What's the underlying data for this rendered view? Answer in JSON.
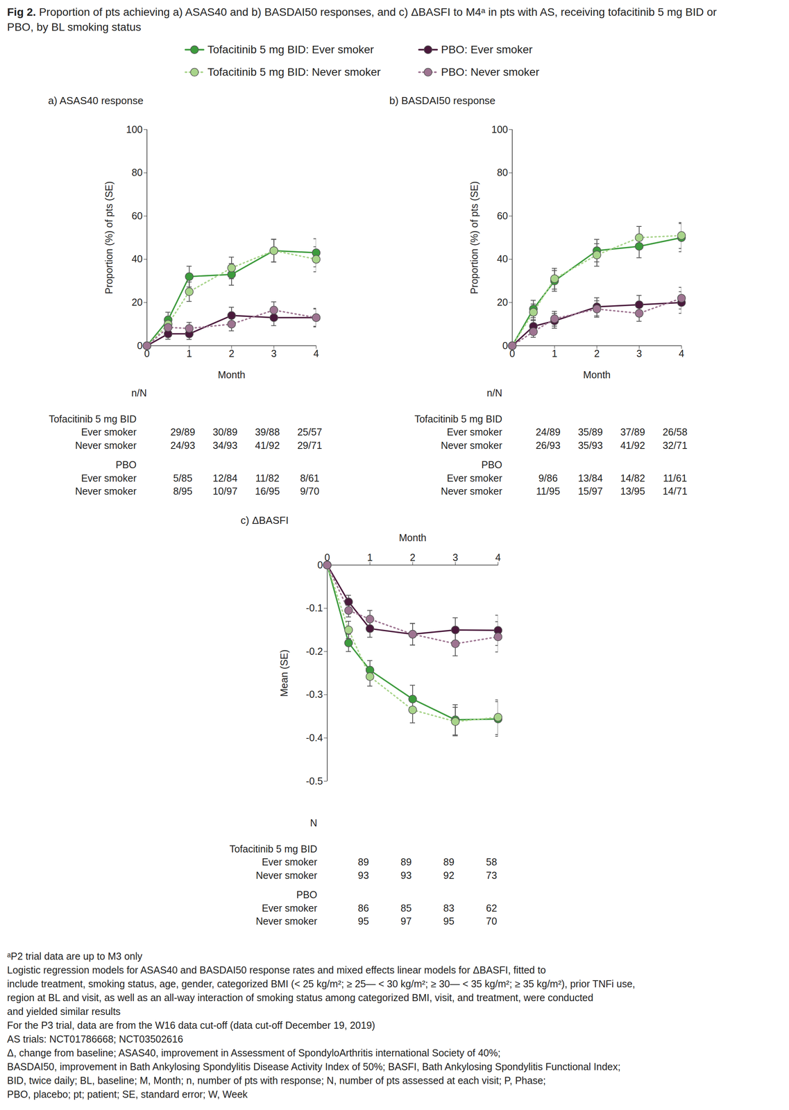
{
  "figure_label": "Fig 2.",
  "title": "Proportion of pts achieving a) ASAS40 and b) BASDAI50 responses, and c) ΔBASFI to M4ᵃ in pts with AS, receiving tofacitinib 5 mg BID or PBO, by BL smoking status",
  "chart_data": [
    {
      "type": "line",
      "title": "a) ASAS40 response",
      "x_label": "Month",
      "y_label": "Proportion (%) of pts (SE)",
      "x": [
        0,
        0.5,
        1,
        2,
        3,
        4
      ],
      "xlim": [
        0,
        4
      ],
      "xticks": [
        0,
        1,
        2,
        3,
        4
      ],
      "ylim": [
        0,
        100
      ],
      "yticks": [
        0,
        20,
        40,
        60,
        80,
        100
      ],
      "grid": false,
      "series": [
        {
          "name": "Tofacitinib 5 mg BID: Ever smoker",
          "color": "#3d9b3d",
          "line_style": "solid",
          "marker": "circle",
          "values": [
            0,
            12,
            32,
            33,
            44,
            43
          ],
          "errors": [
            null,
            3.5,
            4.8,
            5,
            5.3,
            6.5
          ]
        },
        {
          "name": "Tofacitinib 5 mg BID: Never smoker",
          "color": "#a8d48a",
          "line_style": "dotted",
          "marker": "circle",
          "values": [
            0,
            10,
            25,
            36,
            44,
            40
          ],
          "errors": [
            null,
            3.3,
            4.5,
            5,
            5.2,
            5.8
          ]
        },
        {
          "name": "PBO: Ever smoker",
          "color": "#4a1a3c",
          "line_style": "solid",
          "marker": "circle",
          "values": [
            0,
            5.5,
            5.5,
            14,
            13,
            13
          ],
          "errors": [
            null,
            2.5,
            2.6,
            3.8,
            3.7,
            4.3
          ]
        },
        {
          "name": "PBO: Never smoker",
          "color": "#9e7491",
          "line_style": "dotted",
          "marker": "circle",
          "values": [
            0,
            8.5,
            8,
            10,
            16.5,
            13
          ],
          "errors": [
            null,
            3,
            2.8,
            3.1,
            3.8,
            4
          ]
        }
      ],
      "table": {
        "header": "n/N",
        "x": [
          1,
          2,
          3,
          4
        ],
        "groups": [
          {
            "name": "Tofacitinib 5 mg BID",
            "rows": [
              {
                "label": "Ever smoker",
                "values": [
                  "29/89",
                  "30/89",
                  "39/88",
                  "25/57"
                ]
              },
              {
                "label": "Never smoker",
                "values": [
                  "24/93",
                  "34/93",
                  "41/92",
                  "29/71"
                ]
              }
            ]
          },
          {
            "name": "PBO",
            "rows": [
              {
                "label": "Ever smoker",
                "values": [
                  "5/85",
                  "12/84",
                  "11/82",
                  "8/61"
                ]
              },
              {
                "label": "Never smoker",
                "values": [
                  "8/95",
                  "10/97",
                  "16/95",
                  "9/70"
                ]
              }
            ]
          }
        ]
      }
    },
    {
      "type": "line",
      "title": "b) BASDAI50 response",
      "x_label": "Month",
      "y_label": "Proportion (%) of pts (SE)",
      "x": [
        0,
        0.5,
        1,
        2,
        3,
        4
      ],
      "xlim": [
        0,
        4
      ],
      "xticks": [
        0,
        1,
        2,
        3,
        4
      ],
      "ylim": [
        0,
        100
      ],
      "yticks": [
        0,
        20,
        40,
        60,
        80,
        100
      ],
      "grid": false,
      "series": [
        {
          "name": "Tofacitinib 5 mg BID: Ever smoker",
          "color": "#3d9b3d",
          "line_style": "solid",
          "marker": "circle",
          "values": [
            0,
            17,
            30,
            44,
            46,
            50
          ],
          "errors": [
            null,
            4,
            4.8,
            5.2,
            5.3,
            6.5
          ]
        },
        {
          "name": "Tofacitinib 5 mg BID: Never smoker",
          "color": "#a8d48a",
          "line_style": "dotted",
          "marker": "circle",
          "values": [
            0,
            15.5,
            31,
            42,
            50,
            51
          ],
          "errors": [
            null,
            3.8,
            4.8,
            5.2,
            5.2,
            6
          ]
        },
        {
          "name": "PBO: Ever smoker",
          "color": "#4a1a3c",
          "line_style": "solid",
          "marker": "circle",
          "values": [
            0,
            9,
            11.5,
            18,
            19,
            20
          ],
          "errors": [
            null,
            3,
            3.4,
            4.2,
            4.3,
            5
          ]
        },
        {
          "name": "PBO: Never smoker",
          "color": "#9e7491",
          "line_style": "dotted",
          "marker": "circle",
          "values": [
            0,
            6.5,
            12.5,
            17,
            15,
            22
          ],
          "errors": [
            null,
            2.6,
            3.4,
            3.8,
            3.7,
            5
          ]
        }
      ],
      "table": {
        "header": "n/N",
        "x": [
          1,
          2,
          3,
          4
        ],
        "groups": [
          {
            "name": "Tofacitinib 5 mg BID",
            "rows": [
              {
                "label": "Ever smoker",
                "values": [
                  "24/89",
                  "35/89",
                  "37/89",
                  "26/58"
                ]
              },
              {
                "label": "Never smoker",
                "values": [
                  "26/93",
                  "35/93",
                  "41/92",
                  "32/71"
                ]
              }
            ]
          },
          {
            "name": "PBO",
            "rows": [
              {
                "label": "Ever smoker",
                "values": [
                  "9/86",
                  "13/84",
                  "14/82",
                  "11/61"
                ]
              },
              {
                "label": "Never smoker",
                "values": [
                  "11/95",
                  "15/97",
                  "13/95",
                  "14/71"
                ]
              }
            ]
          }
        ]
      }
    },
    {
      "type": "line",
      "title": "c) ΔBASFI",
      "x_label": "Month",
      "y_label": "Mean (SE)",
      "x": [
        0,
        0.5,
        1,
        2,
        3,
        4
      ],
      "xlim": [
        0,
        4
      ],
      "xticks": [
        0,
        1,
        2,
        3,
        4
      ],
      "ylim": [
        -0.5,
        0
      ],
      "yticks": [
        0,
        -0.1,
        -0.2,
        -0.3,
        -0.4,
        -0.5
      ],
      "grid": false,
      "series": [
        {
          "name": "Tofacitinib 5 mg BID: Ever smoker",
          "color": "#3d9b3d",
          "line_style": "solid",
          "marker": "circle",
          "values": [
            0,
            -0.18,
            -0.243,
            -0.31,
            -0.358,
            -0.356
          ],
          "errors": [
            null,
            0.02,
            0.022,
            0.032,
            0.035,
            0.04
          ]
        },
        {
          "name": "Tofacitinib 5 mg BID: Never smoker",
          "color": "#a8d48a",
          "line_style": "dotted",
          "marker": "circle",
          "values": [
            0,
            -0.15,
            -0.258,
            -0.335,
            -0.362,
            -0.352
          ],
          "errors": [
            null,
            0.02,
            0.022,
            0.03,
            0.033,
            0.04
          ]
        },
        {
          "name": "PBO: Ever smoker",
          "color": "#4a1a3c",
          "line_style": "solid",
          "marker": "circle",
          "values": [
            0,
            -0.085,
            -0.147,
            -0.16,
            -0.15,
            -0.151
          ],
          "errors": [
            null,
            0.015,
            0.02,
            0.025,
            0.028,
            0.035
          ]
        },
        {
          "name": "PBO: Never smoker",
          "color": "#9e7491",
          "line_style": "dotted",
          "marker": "circle",
          "values": [
            0,
            -0.105,
            -0.125,
            -0.16,
            -0.182,
            -0.166
          ],
          "errors": [
            null,
            0.015,
            0.02,
            0.025,
            0.028,
            0.035
          ]
        }
      ],
      "table": {
        "header": "N",
        "x": [
          1,
          2,
          3,
          4
        ],
        "groups": [
          {
            "name": "Tofacitinib 5 mg BID",
            "rows": [
              {
                "label": "Ever smoker",
                "values": [
                  89,
                  89,
                  89,
                  58
                ]
              },
              {
                "label": "Never smoker",
                "values": [
                  93,
                  93,
                  92,
                  73
                ]
              }
            ]
          },
          {
            "name": "PBO",
            "rows": [
              {
                "label": "Ever smoker",
                "values": [
                  86,
                  85,
                  83,
                  62
                ]
              },
              {
                "label": "Never smoker",
                "values": [
                  95,
                  97,
                  95,
                  70
                ]
              }
            ]
          }
        ]
      }
    }
  ],
  "footnotes": [
    "ᵃP2 trial data are up to M3 only",
    "Logistic regression models for ASAS40 and BASDAI50 response rates and mixed effects linear models for ΔBASFI, fitted to",
    "include treatment, smoking status, age, gender, categorized BMI (< 25 kg/m²; ≥ 25— < 30 kg/m²; ≥ 30— < 35 kg/m²; ≥ 35 kg/m²), prior TNFi use,",
    "region at BL and visit, as well as an all-way interaction of smoking status among categorized BMI, visit, and treatment, were conducted",
    "and yielded similar results",
    "For the P3 trial, data are from the W16 data cut-off (data cut-off December 19, 2019)",
    "AS trials: NCT01786668; NCT03502616",
    "Δ, change from baseline; ASAS40, improvement in Assessment of SpondyloArthritis international Society of 40%;",
    "BASDAI50, improvement in Bath Ankylosing Spondylitis Disease Activity Index of 50%; BASFI, Bath Ankylosing Spondylitis Functional Index;",
    "BID, twice daily; BL, baseline; M, Month; n, number of pts with response; N, number of pts assessed at each visit; P, Phase;",
    "PBO, placebo; pt; patient; SE, standard error; W, Week"
  ]
}
